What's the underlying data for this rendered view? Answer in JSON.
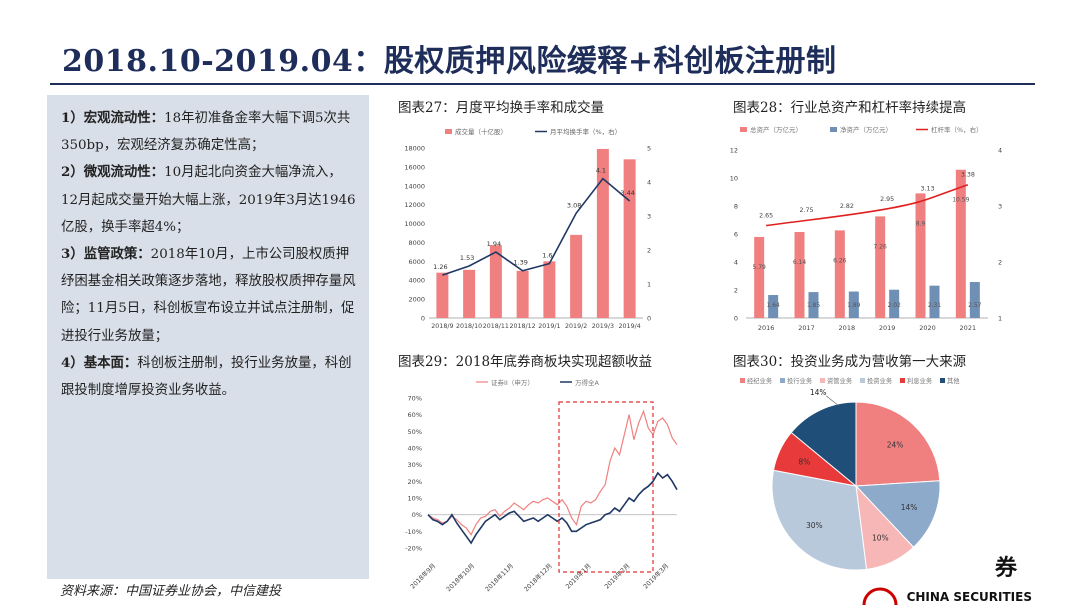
{
  "title": "2018.10-2019.04：股权质押风险缓释+科创板注册制",
  "left_panel": [
    {
      "label": "1）宏观流动性：",
      "text": "18年初准备金率大幅下调5次共350bp，宏观经济复苏确定性高；"
    },
    {
      "label": "2）微观流动性：",
      "text": "10月起北向资金大幅净流入，12月起成交量开始大幅上涨，2019年3月达1946亿股，换手率超4%；"
    },
    {
      "label": "3）监管政策：",
      "text": "2018年10月，上市公司股权质押纾困基金相关政策逐步落地，释放股权质押存量风险；11月5日，科创板宣布设立并试点注册制，促进投行业务放量；"
    },
    {
      "label": "4）基本面：",
      "text": "科创板注册制，投行业务放量，科创跟投制度增厚投资业务收益。"
    }
  ],
  "source": "资料来源：中国证券业协会，中信建投",
  "logo": {
    "text": "券",
    "sub": "CHINA SECURITIES"
  },
  "colors": {
    "navy": "#1e2d5a",
    "red": "#f08080",
    "blue": "#6f8fb5",
    "darkblue": "#1f3864",
    "line_red": "#e02020",
    "panel": "#d9dfe8",
    "frame_red": "#e03030"
  },
  "chart_data": [
    {
      "type": "bar",
      "title": "图表27：月度平均换手率和成交量",
      "categories": [
        "2018/9",
        "2018/10",
        "2018/11",
        "2018/12",
        "2019/1",
        "2019/2",
        "2019/3",
        "2019/4"
      ],
      "series": [
        {
          "name": "成交量（十亿股）",
          "values": [
            4800,
            5100,
            7700,
            5000,
            6000,
            8800,
            17900,
            16800
          ]
        },
        {
          "name": "月平均换手率（%，右）",
          "values": [
            1.26,
            1.53,
            1.94,
            1.39,
            1.6,
            3.08,
            4.1,
            3.44
          ],
          "axis": "right"
        }
      ],
      "data_labels": [
        "1.26",
        "1.53",
        "1.94",
        "1.39",
        "1.6",
        "3.08",
        "4.1",
        "3.44"
      ],
      "ylim": [
        0,
        18000
      ],
      "y2lim": [
        0,
        5
      ],
      "yticks": [
        "0",
        "2000",
        "4000",
        "6000",
        "8000",
        "10000",
        "12000",
        "14000",
        "16000",
        "18000"
      ],
      "y2ticks": [
        "0",
        "1",
        "2",
        "3",
        "4",
        "5"
      ]
    },
    {
      "type": "bar",
      "title": "图表28：行业总资产和杠杆率持续提高",
      "categories": [
        "2016",
        "2017",
        "2018",
        "2019",
        "2020",
        "2021"
      ],
      "series": [
        {
          "name": "总资产（万亿元）",
          "values": [
            5.79,
            6.14,
            6.26,
            7.26,
            8.9,
            10.59
          ]
        },
        {
          "name": "净资产（万亿元）",
          "values": [
            1.64,
            1.85,
            1.89,
            2.02,
            2.31,
            2.57
          ]
        },
        {
          "name": "杠杆率（%，右）",
          "values": [
            2.65,
            2.75,
            2.82,
            2.95,
            3.13,
            3.38
          ],
          "axis": "right"
        }
      ],
      "asset_labels": [
        "5.79",
        "6.14",
        "6.26",
        "7.26",
        "8.9",
        "10.59"
      ],
      "net_labels": [
        "1.64",
        "1.85",
        "1.89",
        "2.02",
        "2.31",
        "2.57"
      ],
      "lev_labels": [
        "2.65",
        "2.75",
        "2.82",
        "2.95",
        "3.13",
        "3.38"
      ],
      "ylim": [
        0,
        12
      ],
      "y2lim": [
        1,
        4
      ],
      "yticks": [
        "0",
        "2",
        "4",
        "6",
        "8",
        "10",
        "12"
      ],
      "y2ticks": [
        "1",
        "2",
        "3",
        "4"
      ]
    },
    {
      "type": "line",
      "title": "图表29：2018年底券商板块实现超额收益",
      "series": [
        {
          "name": "证券II（申万）",
          "values": [
            0,
            -2,
            -3,
            -5,
            -4,
            -1,
            -3,
            -6,
            -8,
            -12,
            -6,
            -2,
            -1,
            2,
            3,
            -1,
            2,
            4,
            7,
            5,
            3,
            6,
            8,
            7,
            9,
            10,
            8,
            6,
            9,
            5,
            -2,
            -6,
            5,
            8,
            7,
            9,
            14,
            18,
            32,
            40,
            36,
            48,
            60,
            45,
            55,
            62,
            52,
            48,
            56,
            58,
            54,
            46,
            42
          ]
        },
        {
          "name": "万得全A",
          "values": [
            0,
            -3,
            -4,
            -6,
            -4,
            0,
            -5,
            -9,
            -13,
            -17,
            -12,
            -8,
            -4,
            -2,
            0,
            -3,
            -1,
            1,
            2,
            -1,
            -4,
            -3,
            -2,
            -4,
            -2,
            0,
            -2,
            -4,
            -2,
            -5,
            -10,
            -10,
            -8,
            -6,
            -5,
            -4,
            -3,
            0,
            1,
            4,
            2,
            6,
            10,
            8,
            12,
            15,
            17,
            20,
            25,
            22,
            24,
            20,
            15
          ]
        }
      ],
      "xticks": [
        "2018年9月",
        "2018年10月",
        "2018年11月",
        "2018年12月",
        "2019年1月",
        "2019年2月",
        "2019年3月"
      ],
      "yticks": [
        "-20%",
        "-10%",
        "0%",
        "10%",
        "20%",
        "30%",
        "40%",
        "50%",
        "60%",
        "70%"
      ],
      "ylim": [
        -20,
        70
      ]
    },
    {
      "type": "pie",
      "title": "图表30：投资业务成为营收第一大来源",
      "legend": [
        "经纪业务",
        "投行业务",
        "资管业务",
        "投资业务",
        "利息业务",
        "其他"
      ],
      "slices": [
        {
          "name": "经纪业务",
          "value": 24,
          "label": "24%",
          "color": "#f08080"
        },
        {
          "name": "投行业务",
          "value": 14,
          "label": "14%",
          "color": "#8eaacb"
        },
        {
          "name": "资管业务",
          "value": 10,
          "label": "10%",
          "color": "#f7b7b7"
        },
        {
          "name": "投资业务",
          "value": 30,
          "label": "30%",
          "color": "#b9c9dc"
        },
        {
          "name": "利息业务",
          "value": 8,
          "label": "8%",
          "color": "#e83a3a"
        },
        {
          "name": "其他",
          "value": 14,
          "label": "14%",
          "color": "#1f4e79"
        }
      ]
    }
  ]
}
